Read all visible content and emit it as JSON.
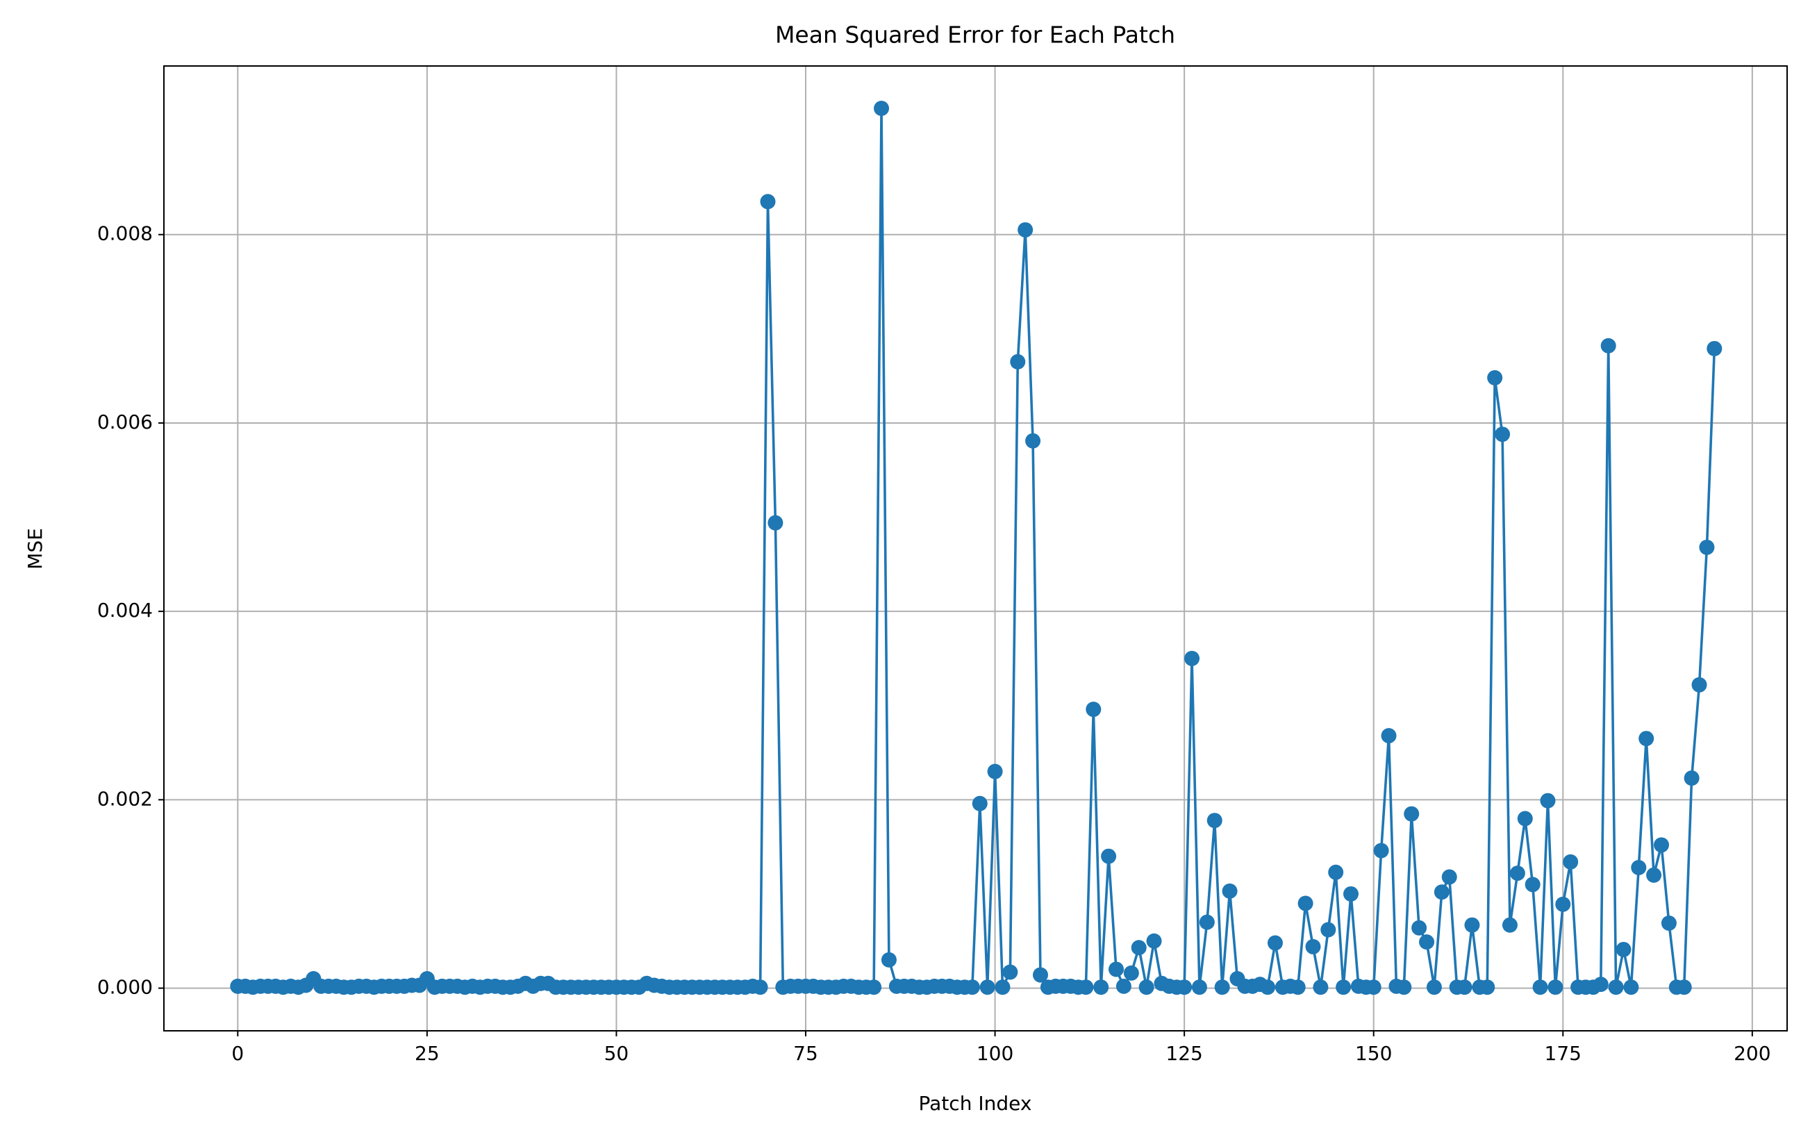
{
  "chart_data": {
    "type": "line",
    "title": "Mean Squared Error for Each Patch",
    "x_label": "Patch Index",
    "y_label": "MSE",
    "x": [
      0,
      1,
      2,
      3,
      4,
      5,
      6,
      7,
      8,
      9,
      10,
      11,
      12,
      13,
      14,
      15,
      16,
      17,
      18,
      19,
      20,
      21,
      22,
      23,
      24,
      25,
      26,
      27,
      28,
      29,
      30,
      31,
      32,
      33,
      34,
      35,
      36,
      37,
      38,
      39,
      40,
      41,
      42,
      43,
      44,
      45,
      46,
      47,
      48,
      49,
      50,
      51,
      52,
      53,
      54,
      55,
      56,
      57,
      58,
      59,
      60,
      61,
      62,
      63,
      64,
      65,
      66,
      67,
      68,
      69,
      70,
      71,
      72,
      73,
      74,
      75,
      76,
      77,
      78,
      79,
      80,
      81,
      82,
      83,
      84,
      85,
      86,
      87,
      88,
      89,
      90,
      91,
      92,
      93,
      94,
      95,
      96,
      97,
      98,
      99,
      100,
      101,
      102,
      103,
      104,
      105,
      106,
      107,
      108,
      109,
      110,
      111,
      112,
      113,
      114,
      115,
      116,
      117,
      118,
      119,
      120,
      121,
      122,
      123,
      124,
      125,
      126,
      127,
      128,
      129,
      130,
      131,
      132,
      133,
      134,
      135,
      136,
      137,
      138,
      139,
      140,
      141,
      142,
      143,
      144,
      145,
      146,
      147,
      148,
      149,
      150,
      151,
      152,
      153,
      154,
      155,
      156,
      157,
      158,
      159,
      160,
      161,
      162,
      163,
      164,
      165,
      166,
      167,
      168,
      169,
      170,
      171,
      172,
      173,
      174,
      175,
      176,
      177,
      178,
      179,
      180,
      181,
      182,
      183,
      184,
      185,
      186,
      187,
      188,
      189,
      190,
      191,
      192,
      193,
      194,
      195
    ],
    "series": [
      {
        "name": "MSE",
        "color": "#1f77b4",
        "values": [
          2e-05,
          2e-05,
          1e-05,
          2e-05,
          2e-05,
          2e-05,
          1e-05,
          2e-05,
          1e-05,
          3e-05,
          0.0001,
          2e-05,
          2e-05,
          2e-05,
          1e-05,
          1e-05,
          2e-05,
          2e-05,
          1e-05,
          2e-05,
          2e-05,
          2e-05,
          2e-05,
          3e-05,
          3e-05,
          0.0001,
          1e-05,
          2e-05,
          2e-05,
          2e-05,
          1e-05,
          2e-05,
          1e-05,
          2e-05,
          2e-05,
          1e-05,
          1e-05,
          2e-05,
          5e-05,
          2e-05,
          5e-05,
          5e-05,
          1e-05,
          1e-05,
          1e-05,
          1e-05,
          1e-05,
          1e-05,
          1e-05,
          1e-05,
          1e-05,
          1e-05,
          1e-05,
          1e-05,
          5e-05,
          3e-05,
          2e-05,
          1e-05,
          1e-05,
          1e-05,
          1e-05,
          1e-05,
          1e-05,
          1e-05,
          1e-05,
          1e-05,
          1e-05,
          1e-05,
          2e-05,
          1e-05,
          0.00835,
          0.00494,
          1e-05,
          2e-05,
          2e-05,
          2e-05,
          2e-05,
          1e-05,
          1e-05,
          1e-05,
          2e-05,
          2e-05,
          1e-05,
          1e-05,
          1e-05,
          0.00934,
          0.0003,
          2e-05,
          2e-05,
          2e-05,
          1e-05,
          1e-05,
          2e-05,
          2e-05,
          2e-05,
          1e-05,
          1e-05,
          1e-05,
          0.00196,
          1e-05,
          0.0023,
          1e-05,
          0.00017,
          0.00665,
          0.00805,
          0.00581,
          0.00014,
          1e-05,
          2e-05,
          2e-05,
          2e-05,
          1e-05,
          1e-05,
          0.00296,
          1e-05,
          0.0014,
          0.0002,
          2e-05,
          0.00016,
          0.00043,
          1e-05,
          0.0005,
          5e-05,
          2e-05,
          1e-05,
          1e-05,
          0.0035,
          1e-05,
          0.0007,
          0.00178,
          1e-05,
          0.00103,
          0.0001,
          2e-05,
          2e-05,
          4e-05,
          1e-05,
          0.00048,
          1e-05,
          2e-05,
          1e-05,
          0.0009,
          0.00044,
          1e-05,
          0.00062,
          0.00123,
          1e-05,
          0.001,
          2e-05,
          1e-05,
          1e-05,
          0.00146,
          0.00268,
          2e-05,
          1e-05,
          0.00185,
          0.00064,
          0.00049,
          1e-05,
          0.00102,
          0.00118,
          1e-05,
          1e-05,
          0.00067,
          1e-05,
          1e-05,
          0.00648,
          0.00588,
          0.00067,
          0.00122,
          0.0018,
          0.0011,
          1e-05,
          0.00199,
          1e-05,
          0.00089,
          0.00134,
          1e-05,
          1e-05,
          1e-05,
          4e-05,
          0.00682,
          1e-05,
          0.00041,
          1e-05,
          0.00128,
          0.00265,
          0.0012,
          0.00152,
          0.00069,
          1e-05,
          1e-05,
          0.00223,
          0.00322,
          0.00468,
          0.00679
        ]
      }
    ],
    "xlim": [
      -9.75,
      204.6
    ],
    "ylim": [
      -0.000453,
      0.00979
    ],
    "xticks": [
      0,
      25,
      50,
      75,
      100,
      125,
      150,
      175,
      200
    ],
    "yticks": [
      {
        "value": 0,
        "label": "0.000"
      },
      {
        "value": 0.002,
        "label": "0.002"
      },
      {
        "value": 0.004,
        "label": "0.004"
      },
      {
        "value": 0.006,
        "label": "0.006"
      },
      {
        "value": 0.008,
        "label": "0.008"
      }
    ],
    "grid": true
  }
}
